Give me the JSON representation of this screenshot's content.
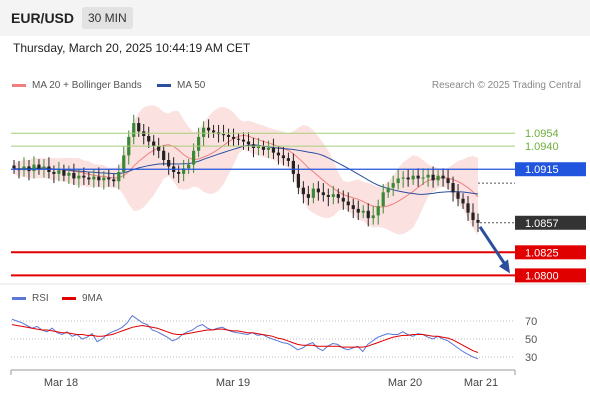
{
  "header": {
    "pair": "EUR/USD",
    "timeframe": "30 MIN"
  },
  "subtitle": "Thursday, March 20, 2025 10:44:19 AM CET",
  "credit": "Research © 2025 Trading Central",
  "legend": {
    "ma20": {
      "label": "MA 20 + Bollinger Bands",
      "color": "#f08080"
    },
    "ma50": {
      "label": "MA 50",
      "color": "#2a4f9e"
    },
    "rsi": {
      "label": "RSI",
      "color": "#5b78d6"
    },
    "ma9": {
      "label": "9MA",
      "color": "#e00000"
    }
  },
  "chart_data": {
    "type": "candlestick",
    "ylim": [
      1.0795,
      1.099
    ],
    "x_labels": [
      "Mar 18",
      "Mar 19",
      "Mar 20",
      "Mar 21"
    ],
    "price_levels": [
      {
        "value": 1.0954,
        "label": "1.0954",
        "kind": "target",
        "color": "#a6cf7a"
      },
      {
        "value": 1.094,
        "label": "1.0940",
        "kind": "target",
        "color": "#a6cf7a"
      },
      {
        "value": 1.0915,
        "label": "1.0915",
        "kind": "pivot",
        "color": "#2255dd"
      },
      {
        "value": 1.0857,
        "label": "1.0857",
        "kind": "last",
        "color": "#333333"
      },
      {
        "value": 1.0825,
        "label": "1.0825",
        "kind": "support",
        "color": "#e00000"
      },
      {
        "value": 1.08,
        "label": "1.0800",
        "kind": "support",
        "color": "#e00000"
      }
    ],
    "close_path": [
      1.0916,
      1.0914,
      1.0918,
      1.0913,
      1.092,
      1.0915,
      1.0918,
      1.0912,
      1.091,
      1.0914,
      1.0908,
      1.0911,
      1.0905,
      1.0908,
      1.0906,
      1.0904,
      1.0907,
      1.0903,
      1.0906,
      1.0904,
      1.0902,
      1.0912,
      1.093,
      1.095,
      1.0965,
      1.0956,
      1.0951,
      1.0945,
      1.094,
      1.0935,
      1.0925,
      1.0918,
      1.0912,
      1.091,
      1.0916,
      1.092,
      1.0935,
      1.095,
      1.096,
      1.0957,
      1.0955,
      1.0953,
      1.0952,
      1.095,
      1.0948,
      1.0947,
      1.0945,
      1.0942,
      1.0938,
      1.094,
      1.0936,
      1.0938,
      1.0933,
      1.093,
      1.0927,
      1.0924,
      1.091,
      1.0895,
      1.0888,
      1.0884,
      1.0894,
      1.089,
      1.0887,
      1.0885,
      1.0888,
      1.0884,
      1.088,
      1.0876,
      1.0872,
      1.0868,
      1.087,
      1.0862,
      1.0865,
      1.0875,
      1.089,
      1.0895,
      1.09,
      1.0905,
      1.0906,
      1.0904,
      1.0908,
      1.0905,
      1.0906,
      1.0909,
      1.0903,
      1.0908,
      1.0905,
      1.09,
      1.089,
      1.0883,
      1.0878,
      1.0868,
      1.086,
      1.0857
    ],
    "forecast_target": 1.08,
    "rsi": {
      "ylim": [
        20,
        80
      ],
      "levels": [
        70,
        50,
        30
      ],
      "values": [
        72,
        70,
        68,
        65,
        62,
        64,
        60,
        58,
        62,
        57,
        55,
        58,
        53,
        55,
        50,
        52,
        56,
        47,
        50,
        55,
        58,
        60,
        63,
        68,
        76,
        72,
        68,
        66,
        60,
        58,
        55,
        52,
        48,
        50,
        55,
        58,
        60,
        64,
        66,
        62,
        60,
        62,
        63,
        60,
        58,
        57,
        56,
        55,
        57,
        54,
        55,
        52,
        50,
        48,
        46,
        45,
        42,
        38,
        40,
        44,
        46,
        40,
        37,
        42,
        45,
        44,
        40,
        38,
        40,
        42,
        36,
        44,
        48,
        52,
        54,
        56,
        55,
        55,
        58,
        55,
        53,
        56,
        55,
        52,
        50,
        53,
        50,
        48,
        44,
        40,
        36,
        33,
        30,
        28
      ],
      "ma9": [
        66,
        65,
        64,
        63,
        62,
        61,
        60,
        60,
        59,
        58,
        57,
        57,
        56,
        55,
        55,
        54,
        54,
        53,
        53,
        54,
        55,
        57,
        59,
        61,
        63,
        64,
        65,
        64,
        63,
        62,
        60,
        58,
        56,
        55,
        55,
        56,
        57,
        58,
        59,
        60,
        60,
        61,
        61,
        60,
        59,
        59,
        58,
        57,
        57,
        56,
        55,
        54,
        53,
        51,
        50,
        48,
        46,
        44,
        43,
        43,
        43,
        42,
        42,
        42,
        42,
        42,
        41,
        41,
        41,
        41,
        41,
        42,
        44,
        46,
        48,
        50,
        52,
        53,
        54,
        54,
        55,
        55,
        55,
        54,
        53,
        53,
        52,
        51,
        49,
        46,
        43,
        40,
        37,
        35
      ]
    }
  }
}
